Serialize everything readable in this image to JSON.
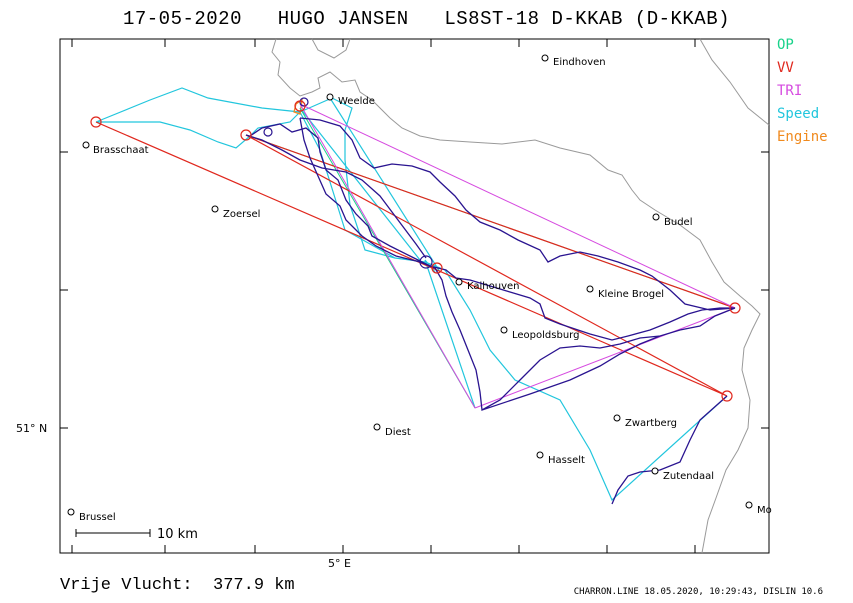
{
  "header": {
    "date": "17-05-2020",
    "pilot": "HUGO JANSEN",
    "glider": "LS8ST-18 D-KKAB (D-KKAB)"
  },
  "legend": {
    "items": [
      {
        "label": "OP",
        "color": "#19d28a"
      },
      {
        "label": "VV",
        "color": "#e0281e"
      },
      {
        "label": "TRI",
        "color": "#d64be0"
      },
      {
        "label": "Speed",
        "color": "#22c6dd"
      },
      {
        "label": "Engine",
        "color": "#f08a1e"
      }
    ]
  },
  "map": {
    "track_color": "#2a1490",
    "border_color": "#9a9a9a",
    "places": [
      "Eindhoven",
      "Weelde",
      "Brasschaat",
      "Zoersel",
      "Budel",
      "Kaihouven",
      "Kleine Brogel",
      "Leopoldsburg",
      "Diest",
      "Zwartberg",
      "Hasselt",
      "Zutendaal",
      "Brussel",
      "Mo"
    ],
    "lat_label": "51° N",
    "lon_label": "5° E",
    "scale_label": "10 km"
  },
  "summary": {
    "distance": "Vrije Vlucht:  377.9 km"
  },
  "footer": {
    "info": "CHARRON.LINE 18.05.2020, 10:29:43, DISLIN 10.6"
  }
}
